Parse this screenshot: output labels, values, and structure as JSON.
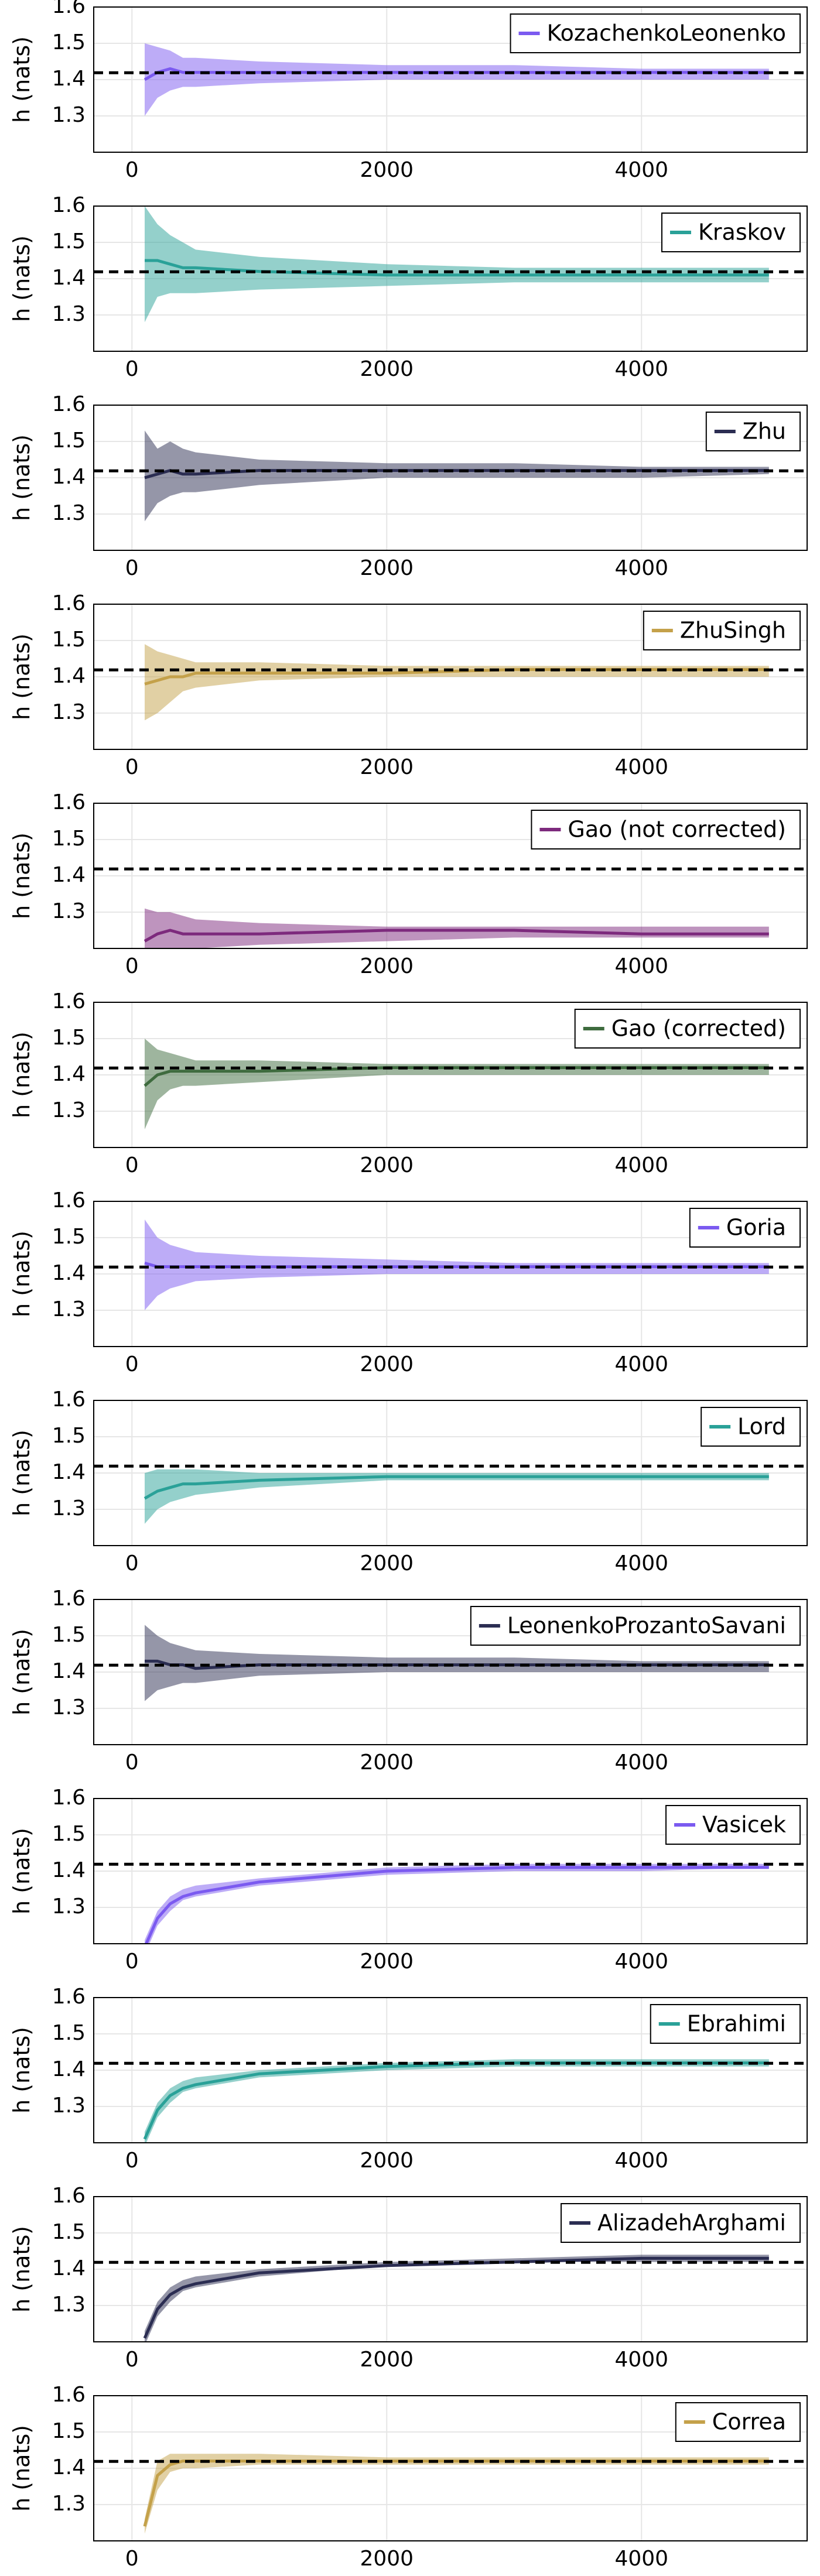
{
  "chart_data": {
    "type": "line",
    "ylabel": "h (nats)",
    "xlim": [
      -300,
      5300
    ],
    "ylim": [
      1.2,
      1.6
    ],
    "xticks": [
      0,
      2000,
      4000
    ],
    "yticks": [
      "1.3",
      "1.4",
      "1.5",
      "1.6"
    ],
    "reference_line": 1.4189,
    "grid": true,
    "legend_position": "top-right",
    "x": [
      100,
      200,
      300,
      400,
      500,
      1000,
      2000,
      3000,
      4000,
      5000
    ],
    "panels": [
      {
        "name": "KozachenkoLeonenko",
        "color": "#7b5af0",
        "mean": [
          1.4,
          1.42,
          1.43,
          1.42,
          1.42,
          1.42,
          1.42,
          1.42,
          1.42,
          1.42
        ],
        "lower": [
          1.3,
          1.35,
          1.37,
          1.38,
          1.38,
          1.39,
          1.4,
          1.4,
          1.4,
          1.4
        ],
        "upper": [
          1.5,
          1.49,
          1.48,
          1.46,
          1.46,
          1.45,
          1.44,
          1.44,
          1.43,
          1.43
        ]
      },
      {
        "name": "Kraskov",
        "color": "#2aa198",
        "mean": [
          1.45,
          1.45,
          1.44,
          1.43,
          1.43,
          1.42,
          1.41,
          1.41,
          1.41,
          1.41
        ],
        "lower": [
          1.28,
          1.35,
          1.36,
          1.36,
          1.36,
          1.37,
          1.38,
          1.39,
          1.39,
          1.39
        ],
        "upper": [
          1.6,
          1.55,
          1.52,
          1.5,
          1.48,
          1.46,
          1.44,
          1.43,
          1.43,
          1.43
        ]
      },
      {
        "name": "Zhu",
        "color": "#2b2d52",
        "mean": [
          1.4,
          1.41,
          1.42,
          1.41,
          1.41,
          1.42,
          1.42,
          1.42,
          1.42,
          1.42
        ],
        "lower": [
          1.28,
          1.33,
          1.35,
          1.36,
          1.36,
          1.38,
          1.4,
          1.4,
          1.4,
          1.41
        ],
        "upper": [
          1.53,
          1.48,
          1.5,
          1.48,
          1.47,
          1.45,
          1.44,
          1.44,
          1.43,
          1.43
        ]
      },
      {
        "name": "ZhuSingh",
        "color": "#c4a14a",
        "mean": [
          1.38,
          1.39,
          1.4,
          1.4,
          1.41,
          1.41,
          1.41,
          1.42,
          1.42,
          1.42
        ],
        "lower": [
          1.28,
          1.3,
          1.33,
          1.36,
          1.37,
          1.39,
          1.4,
          1.4,
          1.4,
          1.4
        ],
        "upper": [
          1.49,
          1.47,
          1.46,
          1.45,
          1.44,
          1.44,
          1.43,
          1.43,
          1.43,
          1.43
        ]
      },
      {
        "name": "Gao (not corrected)",
        "color": "#7d2a7d",
        "mean": [
          1.22,
          1.24,
          1.25,
          1.24,
          1.24,
          1.24,
          1.25,
          1.25,
          1.24,
          1.24
        ],
        "lower": [
          1.2,
          1.2,
          1.2,
          1.2,
          1.2,
          1.21,
          1.22,
          1.23,
          1.23,
          1.23
        ],
        "upper": [
          1.31,
          1.3,
          1.3,
          1.29,
          1.28,
          1.27,
          1.26,
          1.26,
          1.26,
          1.26
        ]
      },
      {
        "name": "Gao (corrected)",
        "color": "#3e6b3e",
        "mean": [
          1.37,
          1.4,
          1.41,
          1.41,
          1.41,
          1.41,
          1.42,
          1.42,
          1.42,
          1.42
        ],
        "lower": [
          1.25,
          1.33,
          1.36,
          1.37,
          1.37,
          1.38,
          1.4,
          1.4,
          1.4,
          1.4
        ],
        "upper": [
          1.5,
          1.47,
          1.46,
          1.45,
          1.44,
          1.44,
          1.43,
          1.43,
          1.43,
          1.43
        ]
      },
      {
        "name": "Goria",
        "color": "#7b5af0",
        "mean": [
          1.43,
          1.42,
          1.42,
          1.42,
          1.42,
          1.42,
          1.42,
          1.42,
          1.42,
          1.42
        ],
        "lower": [
          1.3,
          1.34,
          1.36,
          1.37,
          1.38,
          1.39,
          1.4,
          1.4,
          1.4,
          1.4
        ],
        "upper": [
          1.55,
          1.5,
          1.48,
          1.47,
          1.46,
          1.45,
          1.44,
          1.43,
          1.43,
          1.43
        ]
      },
      {
        "name": "Lord",
        "color": "#2aa198",
        "mean": [
          1.33,
          1.35,
          1.36,
          1.37,
          1.37,
          1.38,
          1.39,
          1.39,
          1.39,
          1.39
        ],
        "lower": [
          1.26,
          1.3,
          1.32,
          1.33,
          1.34,
          1.36,
          1.38,
          1.38,
          1.38,
          1.38
        ],
        "upper": [
          1.4,
          1.41,
          1.41,
          1.41,
          1.41,
          1.4,
          1.4,
          1.4,
          1.4,
          1.4
        ]
      },
      {
        "name": "LeonenkoProzantoSavani",
        "color": "#2b2d52",
        "mean": [
          1.43,
          1.43,
          1.42,
          1.42,
          1.41,
          1.42,
          1.42,
          1.42,
          1.42,
          1.42
        ],
        "lower": [
          1.32,
          1.35,
          1.36,
          1.37,
          1.37,
          1.39,
          1.4,
          1.4,
          1.4,
          1.4
        ],
        "upper": [
          1.53,
          1.5,
          1.48,
          1.47,
          1.46,
          1.45,
          1.44,
          1.44,
          1.43,
          1.43
        ]
      },
      {
        "name": "Vasicek",
        "color": "#7b5af0",
        "mean": [
          1.19,
          1.27,
          1.31,
          1.33,
          1.34,
          1.37,
          1.4,
          1.41,
          1.41,
          1.41
        ],
        "lower": [
          1.17,
          1.25,
          1.29,
          1.32,
          1.33,
          1.36,
          1.39,
          1.4,
          1.4,
          1.41
        ],
        "upper": [
          1.21,
          1.29,
          1.33,
          1.35,
          1.36,
          1.38,
          1.41,
          1.42,
          1.42,
          1.42
        ]
      },
      {
        "name": "Ebrahimi",
        "color": "#2aa198",
        "mean": [
          1.21,
          1.29,
          1.33,
          1.35,
          1.36,
          1.39,
          1.41,
          1.42,
          1.42,
          1.42
        ],
        "lower": [
          1.19,
          1.27,
          1.31,
          1.34,
          1.35,
          1.38,
          1.4,
          1.41,
          1.41,
          1.41
        ],
        "upper": [
          1.23,
          1.31,
          1.35,
          1.37,
          1.38,
          1.4,
          1.42,
          1.43,
          1.43,
          1.43
        ]
      },
      {
        "name": "AlizadehArghami",
        "color": "#2b2d52",
        "mean": [
          1.21,
          1.29,
          1.33,
          1.35,
          1.36,
          1.39,
          1.41,
          1.42,
          1.43,
          1.43
        ],
        "lower": [
          1.19,
          1.27,
          1.31,
          1.34,
          1.35,
          1.38,
          1.41,
          1.42,
          1.42,
          1.42
        ],
        "upper": [
          1.23,
          1.31,
          1.35,
          1.37,
          1.38,
          1.4,
          1.42,
          1.43,
          1.44,
          1.44
        ]
      },
      {
        "name": "Correa",
        "color": "#c4a14a",
        "mean": [
          1.24,
          1.38,
          1.41,
          1.42,
          1.42,
          1.42,
          1.42,
          1.42,
          1.42,
          1.42
        ],
        "lower": [
          1.22,
          1.34,
          1.39,
          1.4,
          1.4,
          1.41,
          1.41,
          1.41,
          1.41,
          1.41
        ],
        "upper": [
          1.26,
          1.42,
          1.44,
          1.44,
          1.44,
          1.44,
          1.43,
          1.43,
          1.43,
          1.43
        ]
      }
    ]
  }
}
